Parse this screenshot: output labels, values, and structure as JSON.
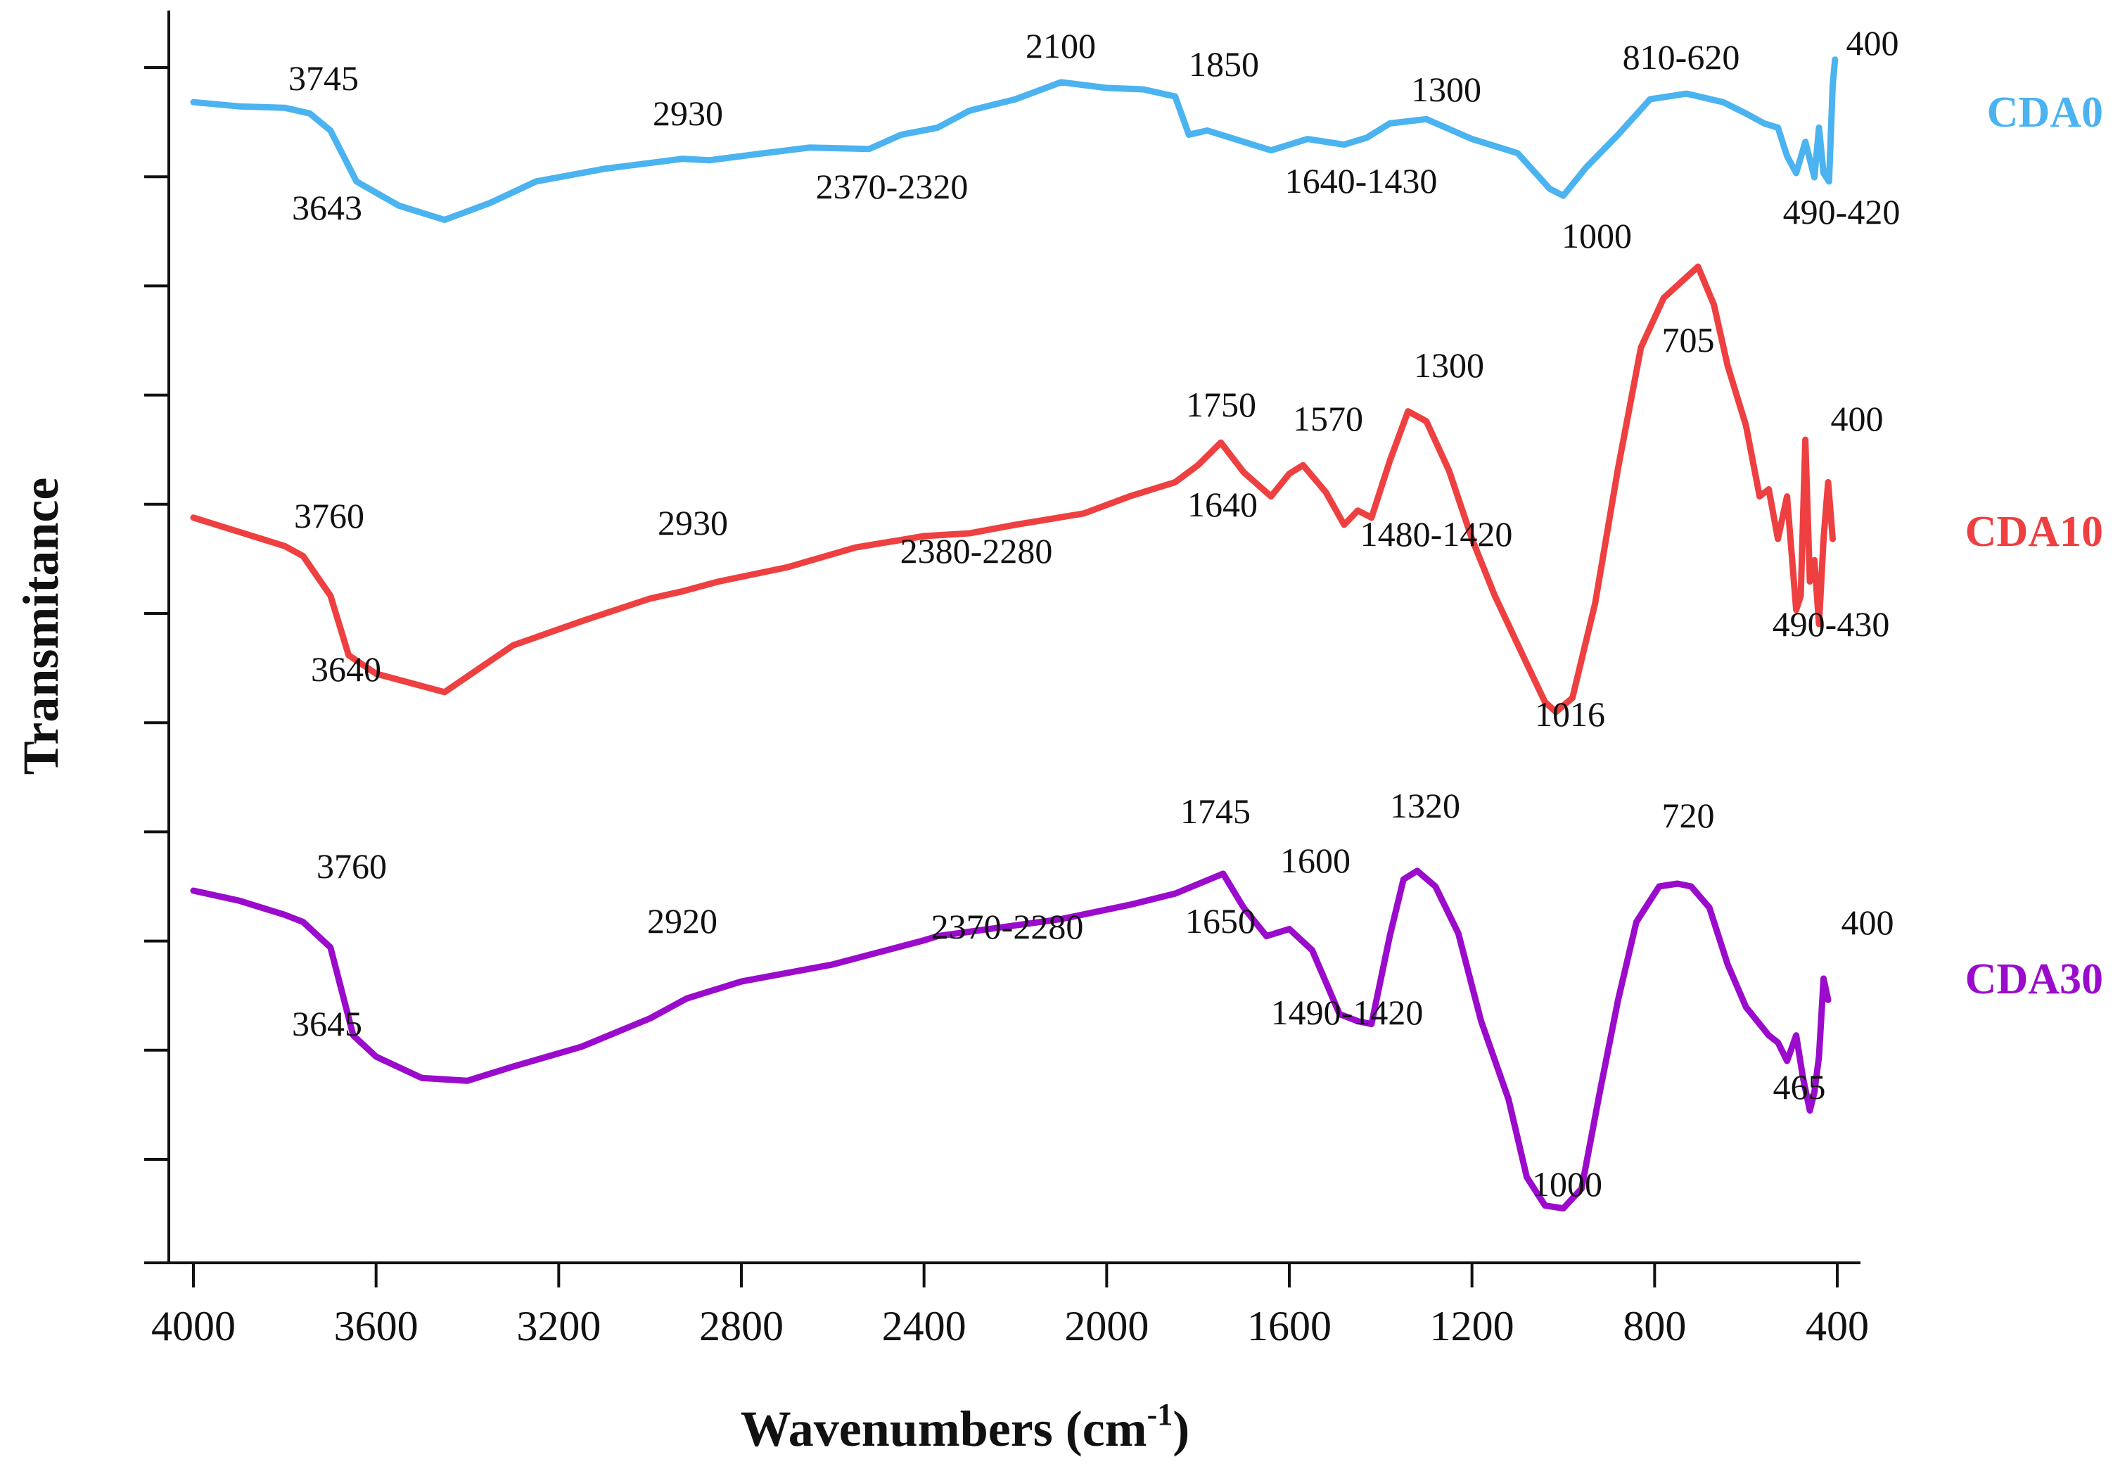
{
  "chart_data": {
    "type": "line",
    "title": "",
    "xlabel": "Wavenumbers (cm",
    "xlabel_sup": "-1",
    "xlabel_close": ")",
    "ylabel": "Transmitance",
    "xlim": [
      4000,
      400
    ],
    "x_reversed": true,
    "x_ticks": [
      "4000",
      "3600",
      "3200",
      "2800",
      "2400",
      "2000",
      "1600",
      "1200",
      "800",
      "400"
    ],
    "y_ticks_unlabeled": 11,
    "grid": false,
    "legend": "right side, series names next to each trace",
    "y_units": "arbitrary (traces vertically offset)",
    "series": [
      {
        "name": "CDA0",
        "color": "#4ab3f0",
        "points": [
          [
            4000,
            72
          ],
          [
            3900,
            75
          ],
          [
            3800,
            76
          ],
          [
            3745,
            80
          ],
          [
            3700,
            92
          ],
          [
            3643,
            128
          ],
          [
            3550,
            145
          ],
          [
            3450,
            155
          ],
          [
            3350,
            143
          ],
          [
            3250,
            128
          ],
          [
            3100,
            119
          ],
          [
            2930,
            112
          ],
          [
            2870,
            113
          ],
          [
            2750,
            108
          ],
          [
            2650,
            104
          ],
          [
            2520,
            105
          ],
          [
            2450,
            95
          ],
          [
            2370,
            90
          ],
          [
            2300,
            78
          ],
          [
            2200,
            70
          ],
          [
            2100,
            58
          ],
          [
            2000,
            62
          ],
          [
            1920,
            63
          ],
          [
            1850,
            68
          ],
          [
            1820,
            95
          ],
          [
            1780,
            92
          ],
          [
            1700,
            100
          ],
          [
            1640,
            106
          ],
          [
            1560,
            98
          ],
          [
            1480,
            102
          ],
          [
            1430,
            97
          ],
          [
            1380,
            87
          ],
          [
            1300,
            84
          ],
          [
            1200,
            98
          ],
          [
            1100,
            108
          ],
          [
            1030,
            133
          ],
          [
            1000,
            138
          ],
          [
            950,
            118
          ],
          [
            880,
            95
          ],
          [
            810,
            70
          ],
          [
            730,
            66
          ],
          [
            650,
            72
          ],
          [
            600,
            80
          ],
          [
            560,
            87
          ],
          [
            530,
            90
          ],
          [
            510,
            110
          ],
          [
            490,
            122
          ],
          [
            470,
            100
          ],
          [
            450,
            125
          ],
          [
            440,
            90
          ],
          [
            430,
            122
          ],
          [
            418,
            128
          ],
          [
            410,
            60
          ],
          [
            405,
            42
          ]
        ]
      },
      {
        "name": "CDA10",
        "color": "#ee4040",
        "points": [
          [
            4000,
            365
          ],
          [
            3900,
            375
          ],
          [
            3800,
            385
          ],
          [
            3760,
            392
          ],
          [
            3700,
            420
          ],
          [
            3660,
            462
          ],
          [
            3600,
            475
          ],
          [
            3450,
            488
          ],
          [
            3300,
            455
          ],
          [
            3150,
            438
          ],
          [
            3000,
            422
          ],
          [
            2930,
            417
          ],
          [
            2850,
            410
          ],
          [
            2700,
            400
          ],
          [
            2550,
            386
          ],
          [
            2400,
            378
          ],
          [
            2300,
            376
          ],
          [
            2200,
            370
          ],
          [
            2050,
            362
          ],
          [
            1950,
            350
          ],
          [
            1850,
            340
          ],
          [
            1800,
            328
          ],
          [
            1750,
            312
          ],
          [
            1700,
            333
          ],
          [
            1640,
            350
          ],
          [
            1600,
            334
          ],
          [
            1570,
            328
          ],
          [
            1520,
            347
          ],
          [
            1480,
            370
          ],
          [
            1450,
            360
          ],
          [
            1420,
            365
          ],
          [
            1380,
            325
          ],
          [
            1340,
            290
          ],
          [
            1300,
            297
          ],
          [
            1250,
            332
          ],
          [
            1200,
            380
          ],
          [
            1150,
            420
          ],
          [
            1080,
            468
          ],
          [
            1040,
            495
          ],
          [
            1016,
            502
          ],
          [
            980,
            492
          ],
          [
            930,
            425
          ],
          [
            880,
            330
          ],
          [
            830,
            245
          ],
          [
            780,
            210
          ],
          [
            705,
            188
          ],
          [
            670,
            215
          ],
          [
            640,
            258
          ],
          [
            600,
            300
          ],
          [
            570,
            350
          ],
          [
            550,
            345
          ],
          [
            530,
            380
          ],
          [
            510,
            350
          ],
          [
            490,
            430
          ],
          [
            480,
            420
          ],
          [
            470,
            310
          ],
          [
            460,
            410
          ],
          [
            450,
            395
          ],
          [
            440,
            440
          ],
          [
            430,
            380
          ],
          [
            420,
            340
          ],
          [
            410,
            380
          ]
        ]
      },
      {
        "name": "CDA30",
        "color": "#9a0bcc",
        "points": [
          [
            4000,
            628
          ],
          [
            3900,
            635
          ],
          [
            3800,
            645
          ],
          [
            3760,
            650
          ],
          [
            3700,
            668
          ],
          [
            3650,
            730
          ],
          [
            3600,
            745
          ],
          [
            3500,
            760
          ],
          [
            3400,
            762
          ],
          [
            3300,
            752
          ],
          [
            3150,
            738
          ],
          [
            3000,
            718
          ],
          [
            2920,
            704
          ],
          [
            2800,
            692
          ],
          [
            2600,
            680
          ],
          [
            2400,
            663
          ],
          [
            2370,
            660
          ],
          [
            2280,
            656
          ],
          [
            2100,
            648
          ],
          [
            1950,
            638
          ],
          [
            1850,
            630
          ],
          [
            1745,
            616
          ],
          [
            1700,
            640
          ],
          [
            1650,
            660
          ],
          [
            1600,
            655
          ],
          [
            1550,
            670
          ],
          [
            1490,
            715
          ],
          [
            1450,
            720
          ],
          [
            1420,
            722
          ],
          [
            1380,
            660
          ],
          [
            1350,
            620
          ],
          [
            1320,
            614
          ],
          [
            1280,
            625
          ],
          [
            1230,
            658
          ],
          [
            1180,
            720
          ],
          [
            1120,
            775
          ],
          [
            1080,
            830
          ],
          [
            1040,
            850
          ],
          [
            1000,
            852
          ],
          [
            960,
            838
          ],
          [
            920,
            770
          ],
          [
            880,
            705
          ],
          [
            840,
            650
          ],
          [
            790,
            625
          ],
          [
            750,
            623
          ],
          [
            720,
            625
          ],
          [
            680,
            640
          ],
          [
            640,
            680
          ],
          [
            600,
            710
          ],
          [
            570,
            722
          ],
          [
            550,
            730
          ],
          [
            530,
            735
          ],
          [
            510,
            748
          ],
          [
            490,
            730
          ],
          [
            475,
            760
          ],
          [
            460,
            783
          ],
          [
            450,
            770
          ],
          [
            440,
            745
          ],
          [
            430,
            690
          ],
          [
            420,
            705
          ]
        ]
      }
    ],
    "annotations": [
      {
        "text": "3745",
        "series": "CDA0"
      },
      {
        "text": "3643",
        "series": "CDA0"
      },
      {
        "text": "2930",
        "series": "CDA0"
      },
      {
        "text": "2370-2320",
        "series": "CDA0"
      },
      {
        "text": "2100",
        "series": "CDA0"
      },
      {
        "text": "1850",
        "series": "CDA0"
      },
      {
        "text": "1640-1430",
        "series": "CDA0"
      },
      {
        "text": "1300",
        "series": "CDA0"
      },
      {
        "text": "1000",
        "series": "CDA0"
      },
      {
        "text": "810-620",
        "series": "CDA0"
      },
      {
        "text": "490-420",
        "series": "CDA0"
      },
      {
        "text": "400",
        "series": "CDA0"
      },
      {
        "text": "3760",
        "series": "CDA10"
      },
      {
        "text": "3640",
        "series": "CDA10"
      },
      {
        "text": "2930",
        "series": "CDA10"
      },
      {
        "text": "2380-2280",
        "series": "CDA10"
      },
      {
        "text": "1750",
        "series": "CDA10"
      },
      {
        "text": "1640",
        "series": "CDA10"
      },
      {
        "text": "1570",
        "series": "CDA10"
      },
      {
        "text": "1480-1420",
        "series": "CDA10"
      },
      {
        "text": "1300",
        "series": "CDA10"
      },
      {
        "text": "1016",
        "series": "CDA10"
      },
      {
        "text": "705",
        "series": "CDA10"
      },
      {
        "text": "490-430",
        "series": "CDA10"
      },
      {
        "text": "400",
        "series": "CDA10"
      },
      {
        "text": "3760",
        "series": "CDA30"
      },
      {
        "text": "3645",
        "series": "CDA30"
      },
      {
        "text": "2920",
        "series": "CDA30"
      },
      {
        "text": "2370-2280",
        "series": "CDA30"
      },
      {
        "text": "1745",
        "series": "CDA30"
      },
      {
        "text": "1650",
        "series": "CDA30"
      },
      {
        "text": "1600",
        "series": "CDA30"
      },
      {
        "text": "1490-1420",
        "series": "CDA30"
      },
      {
        "text": "1320",
        "series": "CDA30"
      },
      {
        "text": "1000",
        "series": "CDA30"
      },
      {
        "text": "720",
        "series": "CDA30"
      },
      {
        "text": "465",
        "series": "CDA30"
      },
      {
        "text": "400",
        "series": "CDA30"
      }
    ]
  }
}
